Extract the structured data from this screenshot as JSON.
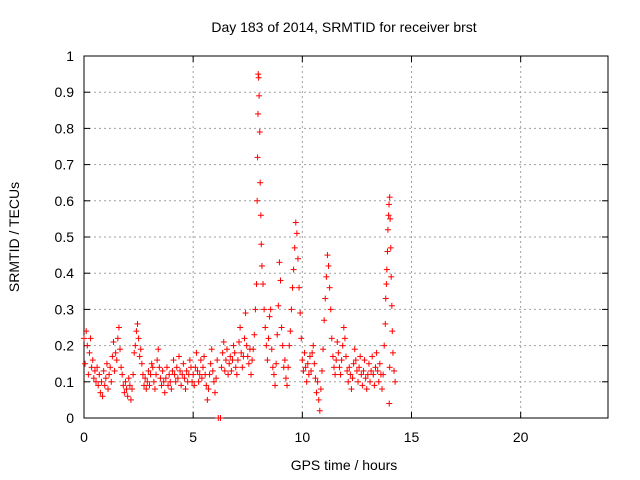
{
  "chart_data": {
    "type": "scatter",
    "title": "Day 183 of 2014, SRMTID for receiver brst",
    "xlabel": "GPS time / hours",
    "ylabel": "SRMTID / TECUs",
    "xlim": [
      0,
      24
    ],
    "ylim": [
      0,
      1
    ],
    "xticks": [
      0,
      5,
      10,
      15,
      20
    ],
    "yticks": [
      0,
      0.1,
      0.2,
      0.3,
      0.4,
      0.5,
      0.6,
      0.7,
      0.8,
      0.9,
      1
    ],
    "grid": true,
    "marker": "+",
    "color": "#ff0000",
    "series": [
      {
        "name": "SRMTID",
        "points": [
          [
            0.0,
            0.22
          ],
          [
            0.05,
            0.15
          ],
          [
            0.1,
            0.24
          ],
          [
            0.15,
            0.2
          ],
          [
            0.2,
            0.12
          ],
          [
            0.25,
            0.18
          ],
          [
            0.3,
            0.22
          ],
          [
            0.35,
            0.14
          ],
          [
            0.4,
            0.16
          ],
          [
            0.45,
            0.11
          ],
          [
            0.5,
            0.13
          ],
          [
            0.55,
            0.1
          ],
          [
            0.6,
            0.14
          ],
          [
            0.65,
            0.09
          ],
          [
            0.7,
            0.12
          ],
          [
            0.75,
            0.07
          ],
          [
            0.8,
            0.1
          ],
          [
            0.85,
            0.06
          ],
          [
            0.9,
            0.13
          ],
          [
            0.95,
            0.09
          ],
          [
            1.0,
            0.11
          ],
          [
            1.05,
            0.15
          ],
          [
            1.1,
            0.08
          ],
          [
            1.15,
            0.12
          ],
          [
            1.2,
            0.14
          ],
          [
            1.25,
            0.1
          ],
          [
            1.3,
            0.17
          ],
          [
            1.35,
            0.21
          ],
          [
            1.4,
            0.13
          ],
          [
            1.45,
            0.18
          ],
          [
            1.5,
            0.16
          ],
          [
            1.55,
            0.22
          ],
          [
            1.6,
            0.25
          ],
          [
            1.65,
            0.19
          ],
          [
            1.7,
            0.14
          ],
          [
            1.75,
            0.12
          ],
          [
            1.8,
            0.09
          ],
          [
            1.85,
            0.07
          ],
          [
            1.9,
            0.1
          ],
          [
            1.95,
            0.08
          ],
          [
            2.0,
            0.06
          ],
          [
            2.05,
            0.11
          ],
          [
            2.1,
            0.09
          ],
          [
            2.15,
            0.05
          ],
          [
            2.2,
            0.08
          ],
          [
            2.25,
            0.12
          ],
          [
            2.3,
            0.18
          ],
          [
            2.35,
            0.2
          ],
          [
            2.4,
            0.24
          ],
          [
            2.45,
            0.26
          ],
          [
            2.5,
            0.22
          ],
          [
            2.55,
            0.17
          ],
          [
            2.6,
            0.19
          ],
          [
            2.65,
            0.15
          ],
          [
            2.7,
            0.12
          ],
          [
            2.75,
            0.09
          ],
          [
            2.8,
            0.11
          ],
          [
            2.85,
            0.08
          ],
          [
            2.9,
            0.1
          ],
          [
            2.95,
            0.13
          ],
          [
            3.0,
            0.09
          ],
          [
            3.05,
            0.12
          ],
          [
            3.1,
            0.15
          ],
          [
            3.15,
            0.14
          ],
          [
            3.2,
            0.1
          ],
          [
            3.25,
            0.08
          ],
          [
            3.3,
            0.12
          ],
          [
            3.35,
            0.16
          ],
          [
            3.4,
            0.19
          ],
          [
            3.45,
            0.14
          ],
          [
            3.5,
            0.11
          ],
          [
            3.55,
            0.09
          ],
          [
            3.6,
            0.13
          ],
          [
            3.65,
            0.1
          ],
          [
            3.7,
            0.07
          ],
          [
            3.75,
            0.11
          ],
          [
            3.8,
            0.14
          ],
          [
            3.85,
            0.09
          ],
          [
            3.9,
            0.12
          ],
          [
            3.95,
            0.1
          ],
          [
            4.0,
            0.08
          ],
          [
            4.05,
            0.13
          ],
          [
            4.1,
            0.16
          ],
          [
            4.15,
            0.12
          ],
          [
            4.2,
            0.1
          ],
          [
            4.25,
            0.14
          ],
          [
            4.3,
            0.11
          ],
          [
            4.35,
            0.17
          ],
          [
            4.4,
            0.13
          ],
          [
            4.45,
            0.09
          ],
          [
            4.5,
            0.12
          ],
          [
            4.55,
            0.15
          ],
          [
            4.6,
            0.11
          ],
          [
            4.65,
            0.08
          ],
          [
            4.7,
            0.13
          ],
          [
            4.75,
            0.1
          ],
          [
            4.8,
            0.12
          ],
          [
            4.85,
            0.16
          ],
          [
            4.9,
            0.14
          ],
          [
            4.95,
            0.1
          ],
          [
            5.0,
            0.12
          ],
          [
            5.05,
            0.09
          ],
          [
            5.1,
            0.14
          ],
          [
            5.15,
            0.18
          ],
          [
            5.2,
            0.13
          ],
          [
            5.25,
            0.1
          ],
          [
            5.3,
            0.12
          ],
          [
            5.35,
            0.16
          ],
          [
            5.4,
            0.11
          ],
          [
            5.45,
            0.14
          ],
          [
            5.5,
            0.17
          ],
          [
            5.55,
            0.12
          ],
          [
            5.6,
            0.09
          ],
          [
            5.65,
            0.05
          ],
          [
            5.7,
            0.08
          ],
          [
            5.75,
            0.12
          ],
          [
            5.8,
            0.15
          ],
          [
            5.85,
            0.19
          ],
          [
            5.9,
            0.13
          ],
          [
            5.95,
            0.1
          ],
          [
            6.0,
            0.07
          ],
          [
            6.05,
            0.11
          ],
          [
            6.1,
            0.16
          ],
          [
            6.15,
            0.0
          ],
          [
            6.25,
            0.0
          ],
          [
            6.3,
            0.14
          ],
          [
            6.35,
            0.18
          ],
          [
            6.4,
            0.21
          ],
          [
            6.45,
            0.13
          ],
          [
            6.5,
            0.16
          ],
          [
            6.55,
            0.19
          ],
          [
            6.6,
            0.12
          ],
          [
            6.65,
            0.15
          ],
          [
            6.7,
            0.17
          ],
          [
            6.75,
            0.13
          ],
          [
            6.8,
            0.16
          ],
          [
            6.85,
            0.2
          ],
          [
            6.9,
            0.18
          ],
          [
            6.95,
            0.14
          ],
          [
            7.0,
            0.12
          ],
          [
            7.05,
            0.16
          ],
          [
            7.1,
            0.21
          ],
          [
            7.15,
            0.25
          ],
          [
            7.2,
            0.18
          ],
          [
            7.25,
            0.14
          ],
          [
            7.3,
            0.17
          ],
          [
            7.35,
            0.22
          ],
          [
            7.4,
            0.29
          ],
          [
            7.45,
            0.2
          ],
          [
            7.5,
            0.17
          ],
          [
            7.55,
            0.15
          ],
          [
            7.6,
            0.19
          ],
          [
            7.65,
            0.12
          ],
          [
            7.7,
            0.16
          ],
          [
            7.75,
            0.19
          ],
          [
            7.8,
            0.23
          ],
          [
            7.85,
            0.3
          ],
          [
            7.9,
            0.37
          ],
          [
            7.93,
            0.6
          ],
          [
            7.95,
            0.72
          ],
          [
            7.97,
            0.84
          ],
          [
            7.98,
            0.95
          ],
          [
            8.0,
            0.94
          ],
          [
            8.02,
            0.89
          ],
          [
            8.05,
            0.79
          ],
          [
            8.07,
            0.65
          ],
          [
            8.1,
            0.56
          ],
          [
            8.12,
            0.48
          ],
          [
            8.15,
            0.42
          ],
          [
            8.2,
            0.37
          ],
          [
            8.25,
            0.3
          ],
          [
            8.3,
            0.25
          ],
          [
            8.35,
            0.2
          ],
          [
            8.4,
            0.16
          ],
          [
            8.45,
            0.22
          ],
          [
            8.5,
            0.28
          ],
          [
            8.55,
            0.3
          ],
          [
            8.6,
            0.19
          ],
          [
            8.65,
            0.14
          ],
          [
            8.7,
            0.12
          ],
          [
            8.75,
            0.09
          ],
          [
            8.8,
            0.15
          ],
          [
            8.85,
            0.23
          ],
          [
            8.9,
            0.31
          ],
          [
            8.95,
            0.43
          ],
          [
            9.0,
            0.38
          ],
          [
            9.05,
            0.25
          ],
          [
            9.1,
            0.2
          ],
          [
            9.15,
            0.14
          ],
          [
            9.2,
            0.16
          ],
          [
            9.25,
            0.11
          ],
          [
            9.3,
            0.09
          ],
          [
            9.35,
            0.14
          ],
          [
            9.4,
            0.2
          ],
          [
            9.45,
            0.24
          ],
          [
            9.5,
            0.3
          ],
          [
            9.55,
            0.36
          ],
          [
            9.6,
            0.41
          ],
          [
            9.65,
            0.47
          ],
          [
            9.7,
            0.54
          ],
          [
            9.75,
            0.51
          ],
          [
            9.8,
            0.44
          ],
          [
            9.85,
            0.36
          ],
          [
            9.9,
            0.29
          ],
          [
            9.95,
            0.22
          ],
          [
            10.0,
            0.16
          ],
          [
            10.05,
            0.13
          ],
          [
            10.1,
            0.18
          ],
          [
            10.15,
            0.14
          ],
          [
            10.2,
            0.1
          ],
          [
            10.25,
            0.15
          ],
          [
            10.3,
            0.12
          ],
          [
            10.35,
            0.17
          ],
          [
            10.4,
            0.13
          ],
          [
            10.45,
            0.18
          ],
          [
            10.5,
            0.2
          ],
          [
            10.55,
            0.15
          ],
          [
            10.6,
            0.11
          ],
          [
            10.65,
            0.07
          ],
          [
            10.7,
            0.1
          ],
          [
            10.75,
            0.05
          ],
          [
            10.8,
            0.02
          ],
          [
            10.85,
            0.08
          ],
          [
            10.9,
            0.13
          ],
          [
            10.95,
            0.19
          ],
          [
            11.0,
            0.27
          ],
          [
            11.05,
            0.33
          ],
          [
            11.1,
            0.39
          ],
          [
            11.15,
            0.45
          ],
          [
            11.2,
            0.42
          ],
          [
            11.25,
            0.36
          ],
          [
            11.3,
            0.3
          ],
          [
            11.35,
            0.22
          ],
          [
            11.4,
            0.17
          ],
          [
            11.45,
            0.14
          ],
          [
            11.5,
            0.12
          ],
          [
            11.55,
            0.16
          ],
          [
            11.6,
            0.21
          ],
          [
            11.65,
            0.18
          ],
          [
            11.7,
            0.14
          ],
          [
            11.75,
            0.12
          ],
          [
            11.8,
            0.16
          ],
          [
            11.85,
            0.2
          ],
          [
            11.9,
            0.25
          ],
          [
            11.95,
            0.22
          ],
          [
            12.0,
            0.17
          ],
          [
            12.05,
            0.13
          ],
          [
            12.1,
            0.1
          ],
          [
            12.15,
            0.14
          ],
          [
            12.2,
            0.12
          ],
          [
            12.25,
            0.08
          ],
          [
            12.3,
            0.11
          ],
          [
            12.35,
            0.15
          ],
          [
            12.4,
            0.19
          ],
          [
            12.45,
            0.16
          ],
          [
            12.5,
            0.13
          ],
          [
            12.55,
            0.1
          ],
          [
            12.6,
            0.14
          ],
          [
            12.65,
            0.17
          ],
          [
            12.7,
            0.12
          ],
          [
            12.75,
            0.09
          ],
          [
            12.8,
            0.13
          ],
          [
            12.85,
            0.16
          ],
          [
            12.9,
            0.11
          ],
          [
            12.95,
            0.08
          ],
          [
            13.0,
            0.12
          ],
          [
            13.05,
            0.15
          ],
          [
            13.1,
            0.1
          ],
          [
            13.15,
            0.13
          ],
          [
            13.2,
            0.17
          ],
          [
            13.25,
            0.12
          ],
          [
            13.3,
            0.09
          ],
          [
            13.35,
            0.14
          ],
          [
            13.4,
            0.18
          ],
          [
            13.45,
            0.13
          ],
          [
            13.5,
            0.1
          ],
          [
            13.55,
            0.15
          ],
          [
            13.6,
            0.12
          ],
          [
            13.65,
            0.08
          ],
          [
            13.7,
            0.12
          ],
          [
            13.75,
            0.2
          ],
          [
            13.8,
            0.26
          ],
          [
            13.82,
            0.33
          ],
          [
            13.85,
            0.37
          ],
          [
            13.87,
            0.41
          ],
          [
            13.9,
            0.46
          ],
          [
            13.92,
            0.52
          ],
          [
            13.95,
            0.56
          ],
          [
            13.97,
            0.59
          ],
          [
            14.0,
            0.61
          ],
          [
            14.02,
            0.55
          ],
          [
            14.05,
            0.47
          ],
          [
            14.07,
            0.39
          ],
          [
            14.1,
            0.31
          ],
          [
            14.12,
            0.24
          ],
          [
            14.15,
            0.18
          ],
          [
            14.2,
            0.13
          ],
          [
            14.25,
            0.1
          ],
          [
            13.98,
            0.04
          ],
          [
            14.0,
            0.14
          ]
        ]
      }
    ]
  }
}
